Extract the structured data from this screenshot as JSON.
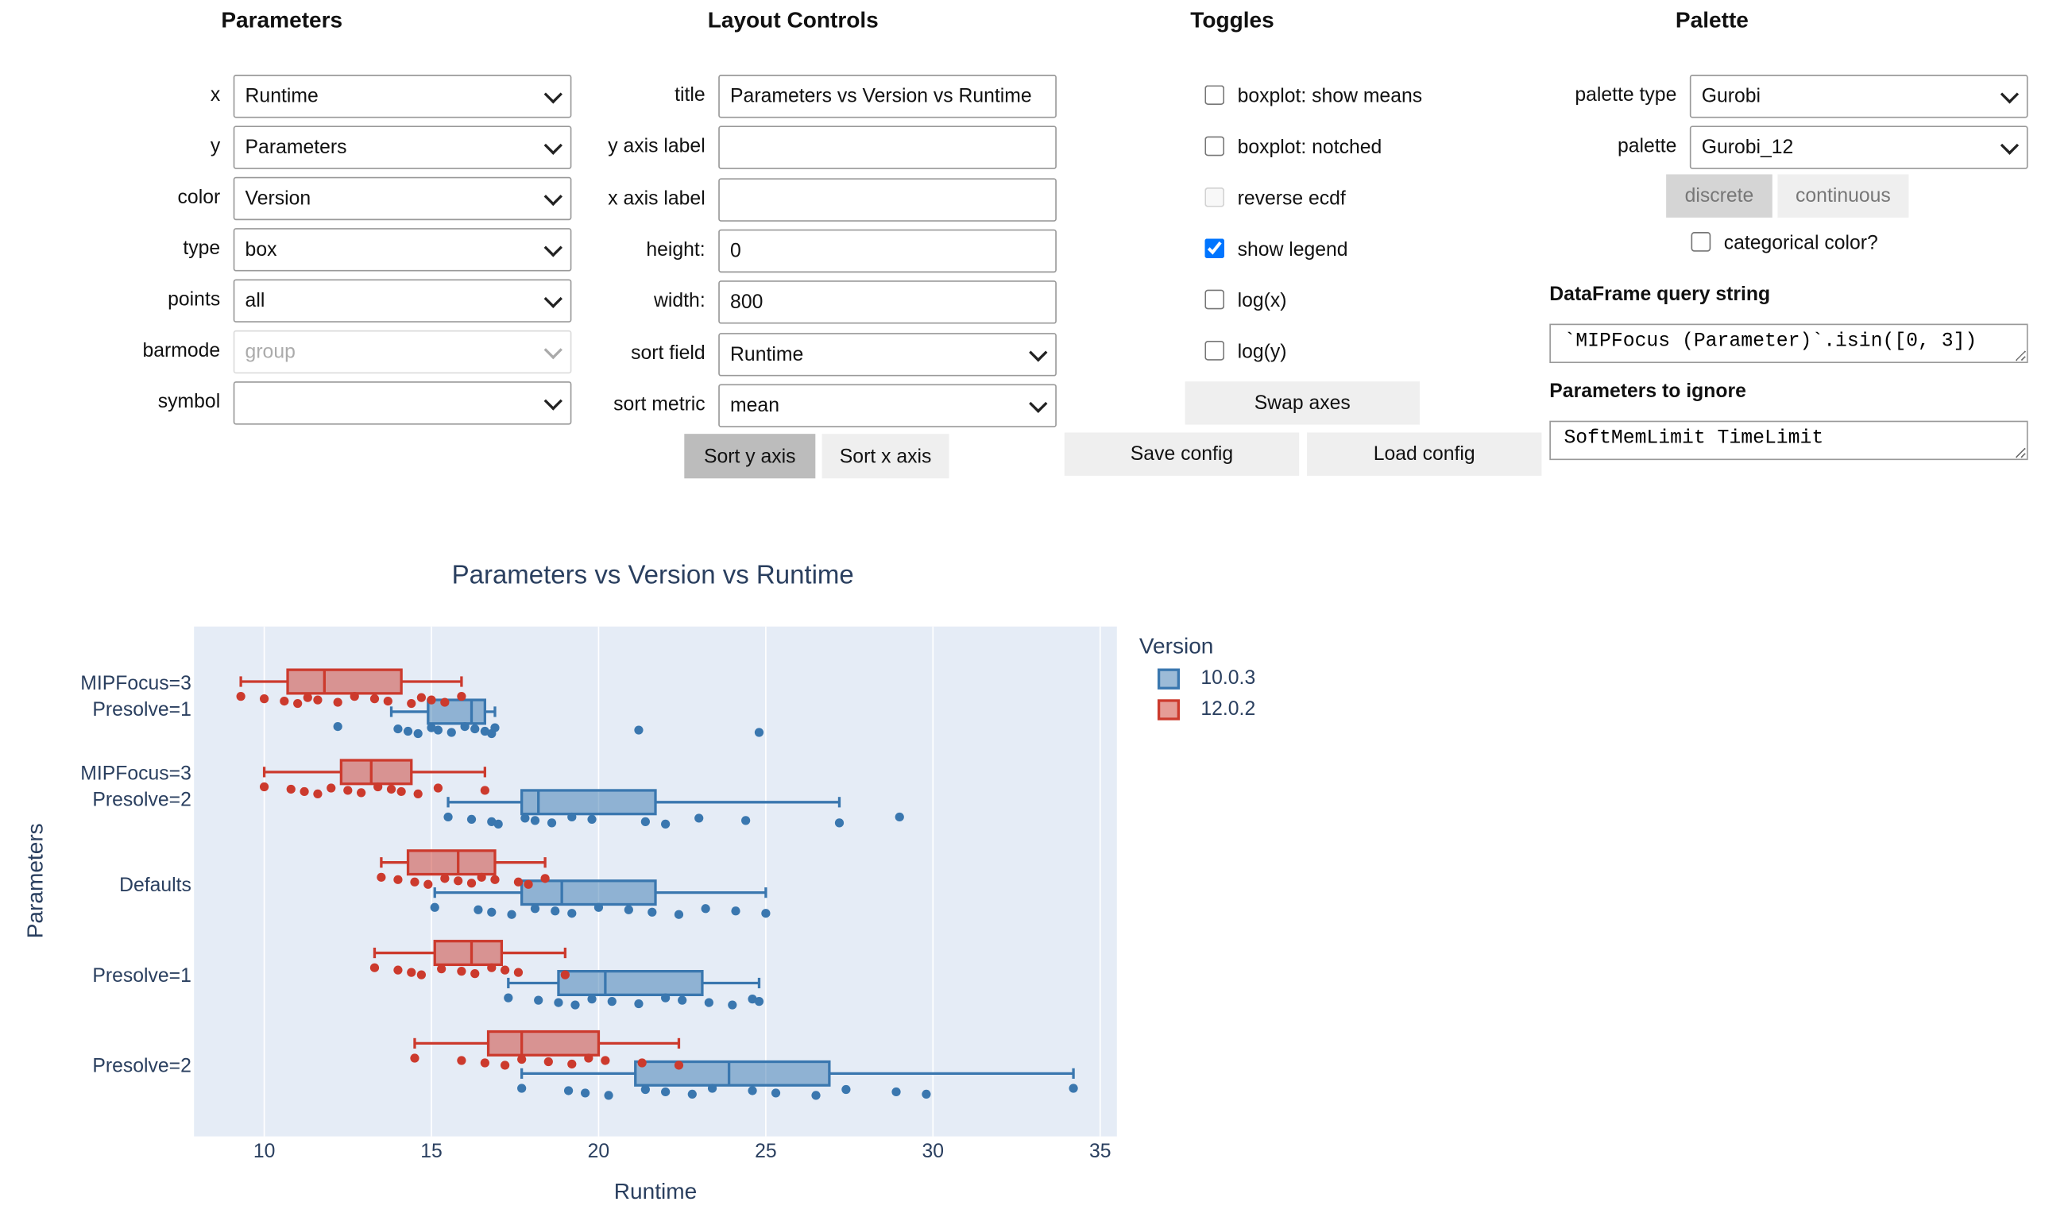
{
  "controls": {
    "parameters": {
      "heading": "Parameters",
      "fields": [
        {
          "label": "x",
          "value": "Runtime"
        },
        {
          "label": "y",
          "value": "Parameters"
        },
        {
          "label": "color",
          "value": "Version"
        },
        {
          "label": "type",
          "value": "box"
        },
        {
          "label": "points",
          "value": "all"
        },
        {
          "label": "barmode",
          "value": "group",
          "disabled": true
        },
        {
          "label": "symbol"
        }
      ]
    },
    "layout": {
      "heading": "Layout Controls",
      "fields": [
        {
          "label": "title",
          "value": "Parameters vs Version vs Runtime"
        },
        {
          "label": "y axis label"
        },
        {
          "label": "x axis label"
        },
        {
          "label": "height:",
          "value": "0"
        },
        {
          "label": "width:",
          "value": "800"
        },
        {
          "label": "sort field",
          "value": "Runtime"
        },
        {
          "label": "sort metric",
          "value": "mean"
        }
      ],
      "buttons": [
        "Sort y axis",
        "Sort x axis"
      ]
    },
    "toggles": {
      "heading": "Toggles",
      "checkboxes": [
        {
          "label": "boxplot: show means",
          "checked": false
        },
        {
          "label": "boxplot: notched",
          "checked": false
        },
        {
          "label": "reverse ecdf",
          "checked": false,
          "disabled": true
        },
        {
          "label": "show legend",
          "checked": true
        },
        {
          "label": "log(x)",
          "checked": false
        },
        {
          "label": "log(y)",
          "checked": false
        }
      ],
      "buttons": [
        "Swap axes",
        "Save config",
        "Load config"
      ]
    },
    "palette": {
      "heading": "Palette",
      "fields": [
        {
          "label": "palette type",
          "value": "Gurobi"
        },
        {
          "label": "palette",
          "value": "Gurobi_12"
        }
      ],
      "modes": [
        "discrete",
        "continuous"
      ],
      "categorical": {
        "label": "categorical color?",
        "checked": false
      },
      "query_label": "DataFrame query string",
      "query": "`MIPFocus (Parameter)`.isin([0, 3])",
      "ignore_label": "Parameters to ignore",
      "ignore": "SoftMemLimit TimeLimit"
    }
  },
  "chart_data": {
    "type": "box",
    "title": "Parameters vs Version vs Runtime",
    "x_label": "Runtime",
    "y_label": "Parameters",
    "categories": [
      [
        "MIPFocus=3",
        "Presolve=1"
      ],
      [
        "MIPFocus=3",
        "Presolve=2"
      ],
      [
        "Defaults"
      ],
      [
        "Presolve=1"
      ],
      [
        "Presolve=2"
      ]
    ],
    "xlim": [
      7.9,
      35.5
    ],
    "xticks": [
      10,
      15,
      20,
      25,
      30,
      35
    ],
    "grid": true,
    "legend_title": "Version",
    "series": [
      {
        "name": "10.0.3",
        "color": "#3a77af",
        "boxes": [
          {
            "min": 13.8,
            "q1": 14.9,
            "median": 16.2,
            "q3": 16.6,
            "max": 16.9,
            "points": [
              12.2,
              14.0,
              14.3,
              14.6,
              15.0,
              15.2,
              15.6,
              16.0,
              16.3,
              16.6,
              16.8,
              16.9,
              21.2,
              24.8
            ]
          },
          {
            "min": 15.5,
            "q1": 17.7,
            "median": 18.2,
            "q3": 21.7,
            "max": 27.2,
            "points": [
              15.5,
              16.2,
              16.8,
              17.0,
              17.8,
              18.1,
              18.6,
              19.2,
              19.8,
              21.4,
              22.0,
              23.0,
              24.4,
              27.2,
              29.0
            ]
          },
          {
            "min": 15.1,
            "q1": 17.7,
            "median": 18.9,
            "q3": 21.7,
            "max": 25.0,
            "points": [
              15.1,
              16.4,
              16.8,
              17.4,
              18.1,
              18.7,
              19.2,
              20.0,
              20.9,
              21.6,
              22.4,
              23.2,
              24.1,
              25.0
            ]
          },
          {
            "min": 17.3,
            "q1": 18.8,
            "median": 20.2,
            "q3": 23.1,
            "max": 24.8,
            "points": [
              17.3,
              18.2,
              18.8,
              19.3,
              19.8,
              20.4,
              21.2,
              22.0,
              22.5,
              23.3,
              24.0,
              24.6,
              24.8
            ]
          },
          {
            "min": 17.7,
            "q1": 21.1,
            "median": 23.9,
            "q3": 26.9,
            "max": 34.2,
            "points": [
              17.7,
              19.1,
              19.6,
              20.3,
              21.4,
              22.0,
              22.8,
              23.4,
              24.6,
              25.3,
              26.5,
              27.4,
              28.9,
              29.8,
              34.2
            ]
          }
        ]
      },
      {
        "name": "12.0.2",
        "color": "#cc3a2d",
        "boxes": [
          {
            "min": 9.3,
            "q1": 10.7,
            "median": 11.8,
            "q3": 14.1,
            "max": 15.9,
            "points": [
              9.3,
              10.0,
              10.6,
              11.0,
              11.3,
              11.6,
              12.2,
              12.7,
              13.3,
              13.7,
              14.4,
              14.7,
              15.0,
              15.4,
              15.9
            ]
          },
          {
            "min": 10.0,
            "q1": 12.3,
            "median": 13.2,
            "q3": 14.4,
            "max": 16.6,
            "points": [
              10.0,
              10.8,
              11.2,
              11.6,
              12.0,
              12.5,
              12.9,
              13.4,
              13.8,
              14.1,
              14.6,
              15.2,
              16.6
            ]
          },
          {
            "min": 13.5,
            "q1": 14.3,
            "median": 15.8,
            "q3": 16.9,
            "max": 18.4,
            "points": [
              13.5,
              14.0,
              14.5,
              14.9,
              15.4,
              15.8,
              16.2,
              16.5,
              16.9,
              17.6,
              17.9,
              18.4
            ]
          },
          {
            "min": 13.3,
            "q1": 15.1,
            "median": 16.2,
            "q3": 17.1,
            "max": 19.0,
            "points": [
              13.3,
              14.0,
              14.4,
              14.7,
              15.3,
              15.9,
              16.3,
              16.8,
              17.2,
              17.6,
              19.0
            ]
          },
          {
            "min": 14.5,
            "q1": 16.7,
            "median": 17.7,
            "q3": 20.0,
            "max": 22.4,
            "points": [
              14.5,
              15.9,
              16.6,
              17.2,
              17.7,
              18.5,
              19.2,
              19.7,
              20.2,
              21.3,
              22.4
            ]
          }
        ]
      }
    ]
  }
}
